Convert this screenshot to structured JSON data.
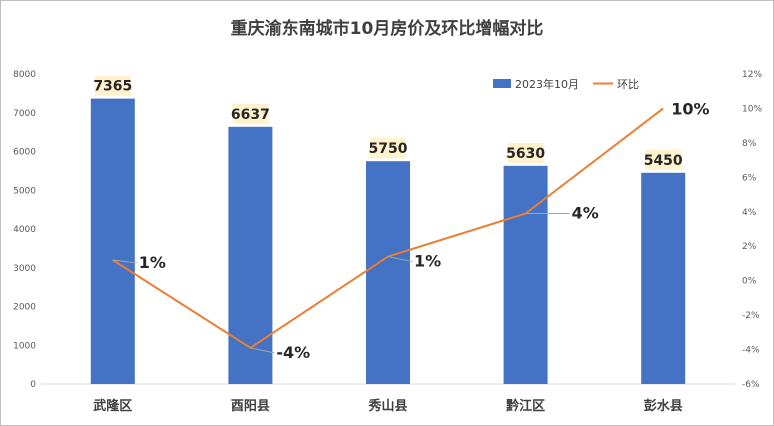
{
  "chart_data": {
    "type": "bar+line",
    "title": "重庆渝东南城市10月房价及环比增幅对比",
    "categories": [
      "武隆区",
      "酉阳县",
      "秀山县",
      "黔江区",
      "彭水县"
    ],
    "series": [
      {
        "name": "2023年10月",
        "type": "bar",
        "axis": "left",
        "color": "#4472C4",
        "values": [
          7365,
          6637,
          5750,
          5630,
          5450
        ],
        "labels": [
          "7365",
          "6637",
          "5750",
          "5630",
          "5450"
        ]
      },
      {
        "name": "环比",
        "type": "line",
        "axis": "right",
        "color": "#ED7D31",
        "values": [
          1.2,
          -3.9,
          1.4,
          3.9,
          10.0
        ],
        "labels": [
          "1%",
          "-4%",
          "1%",
          "4%",
          "10%"
        ]
      }
    ],
    "y_left": {
      "min": 0,
      "max": 8000,
      "ticks": [
        "0",
        "1000",
        "2000",
        "3000",
        "4000",
        "5000",
        "6000",
        "7000",
        "8000"
      ]
    },
    "y_right": {
      "min": -6,
      "max": 12,
      "ticks": [
        "-6%",
        "-4%",
        "-2%",
        "0%",
        "2%",
        "4%",
        "6%",
        "8%",
        "10%",
        "12%"
      ]
    },
    "legend_position": "top-right",
    "grid": false
  }
}
